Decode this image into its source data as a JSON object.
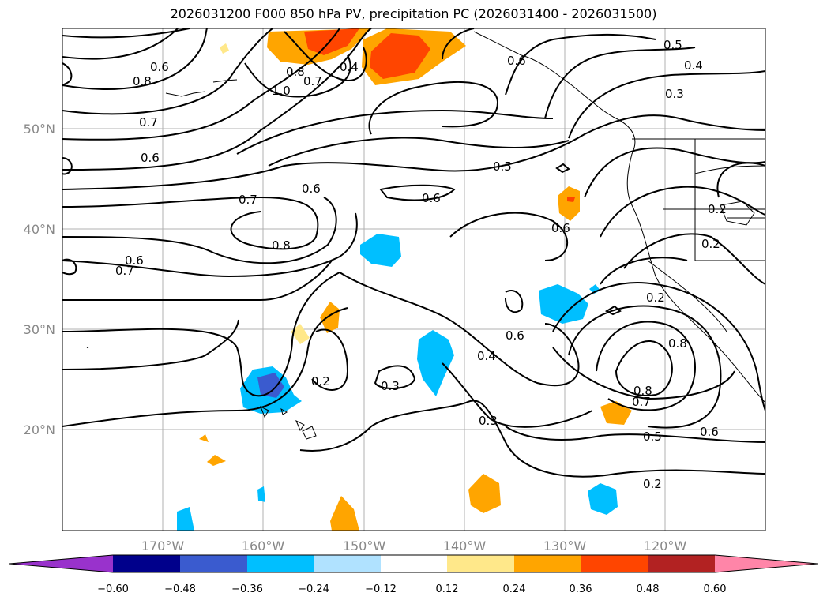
{
  "title": "2026031200 F000 850 hPa PV, precipitation PC (2026031400 - 2026031500)",
  "lon_ticks": [
    "170°W",
    "160°W",
    "150°W",
    "140°W",
    "130°W",
    "120°W"
  ],
  "lat_ticks": [
    "50°N",
    "40°N",
    "30°N",
    "20°N"
  ],
  "contour_labels": [
    "0.8",
    "0.6",
    "0.7",
    "0.6",
    "1.0",
    "0.8",
    "0.7",
    "0.4",
    "0.6",
    "0.7",
    "0.8",
    "0.7",
    "0.6",
    "0.6",
    "0.6",
    "0.5",
    "0.5",
    "0.4",
    "0.3",
    "0.2",
    "0.6",
    "0.6",
    "0.4",
    "0.3",
    "0.3",
    "0.2",
    "0.8",
    "0.8",
    "0.7",
    "0.5",
    "0.2",
    "0.6",
    "0.2",
    "0.2"
  ],
  "colorbar": {
    "ticks": [
      "−0.60",
      "−0.48",
      "−0.36",
      "−0.24",
      "−0.12",
      "0.12",
      "0.24",
      "0.36",
      "0.48",
      "0.60"
    ],
    "colors": [
      "#9932cc",
      "#00008b",
      "#3a5bcf",
      "#00bfff",
      "#b0e2ff",
      "#ffffff",
      "#ffe88a",
      "#ffa500",
      "#ff4500",
      "#b22222",
      "#ff85a8"
    ]
  }
}
